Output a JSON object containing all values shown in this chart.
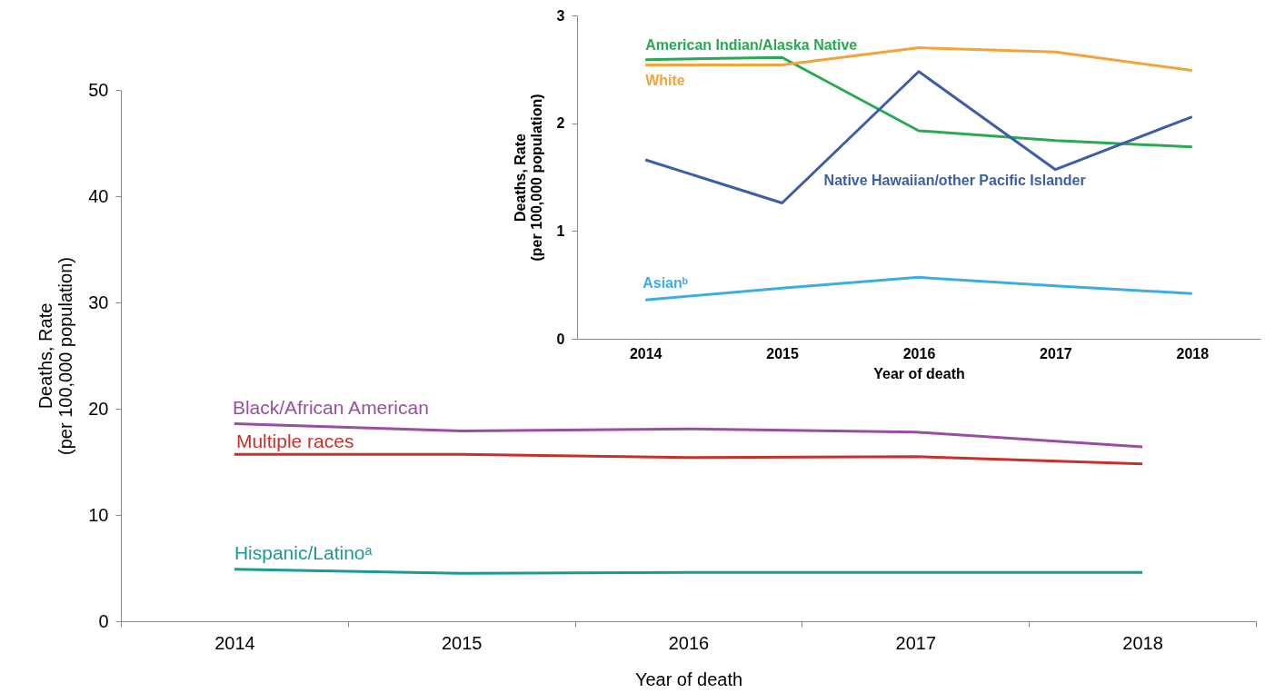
{
  "chart_data": [
    {
      "type": "line",
      "xlabel": "Year of death",
      "ylabel": "Deaths, Rate\n(per 100,000 population)",
      "categories": [
        "2014",
        "2015",
        "2016",
        "2017",
        "2018"
      ],
      "ylim": [
        0,
        50
      ],
      "yticks": [
        0,
        10,
        20,
        30,
        40,
        50
      ],
      "series": [
        {
          "name": "Black/African American",
          "color": "#9a4ea3",
          "values": [
            18.6,
            17.9,
            18.1,
            17.8,
            16.4
          ]
        },
        {
          "name": "Multiple races",
          "color": "#c8312b",
          "values": [
            15.7,
            15.7,
            15.4,
            15.5,
            14.8
          ]
        },
        {
          "name": "Hispanic/Latinoᵃ",
          "color": "#1a9a94",
          "values": [
            4.9,
            4.5,
            4.6,
            4.6,
            4.6
          ]
        }
      ]
    },
    {
      "type": "line",
      "xlabel": "Year of death",
      "ylabel": "Deaths, Rate\n(per 100,000 population)",
      "categories": [
        "2014",
        "2015",
        "2016",
        "2017",
        "2018"
      ],
      "ylim": [
        0,
        3
      ],
      "yticks": [
        0,
        1,
        2,
        3
      ],
      "series": [
        {
          "name": "American Indian/Alaska Native",
          "color": "#2aa852",
          "values": [
            2.59,
            2.61,
            1.93,
            1.84,
            1.78
          ]
        },
        {
          "name": "White",
          "color": "#f2a33a",
          "values": [
            2.54,
            2.54,
            2.7,
            2.66,
            2.49
          ]
        },
        {
          "name": "Native Hawaiian/other Pacific Islander",
          "color": "#3c5ea8",
          "values": [
            1.66,
            1.26,
            2.48,
            1.57,
            2.06
          ]
        },
        {
          "name": "Asianᵇ",
          "color": "#3daee3",
          "values": [
            0.36,
            0.47,
            0.57,
            0.49,
            0.42
          ]
        }
      ]
    }
  ]
}
